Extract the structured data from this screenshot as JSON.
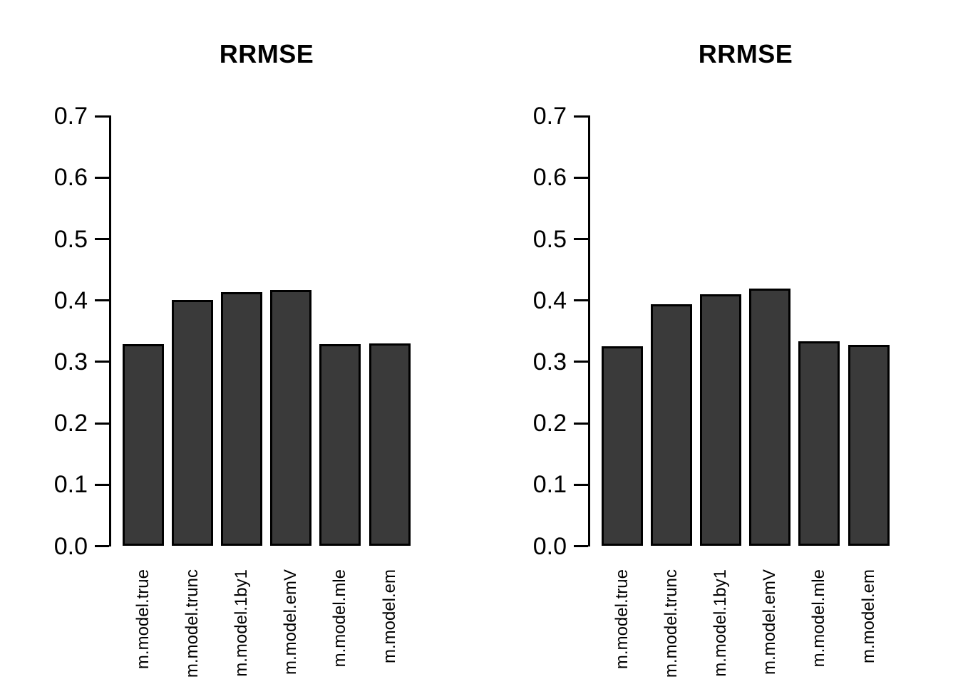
{
  "page": {
    "background_color": "#ffffff",
    "description": "Two side-by-side bar charts"
  },
  "chart_data": [
    {
      "type": "bar",
      "title": "RRMSE",
      "categories": [
        "m.model.true",
        "m.model.trunc",
        "m.model.1by1",
        "m.model.emV",
        "m.model.mle",
        "m.model.em"
      ],
      "values": [
        0.329,
        0.401,
        0.414,
        0.417,
        0.329,
        0.33
      ],
      "xlabel": "",
      "ylabel": "",
      "ylim": [
        0,
        0.7
      ],
      "yticks": [
        "0.0",
        "0.1",
        "0.2",
        "0.3",
        "0.4",
        "0.5",
        "0.6",
        "0.7"
      ],
      "grid": false,
      "legend": "none",
      "bar_color": "#3a3a3a",
      "bar_border_color": "#000000",
      "axis_color": "#000000",
      "xtick_rotation_deg": 90
    },
    {
      "type": "bar",
      "title": "RRMSE",
      "categories": [
        "m.model.true",
        "m.model.trunc",
        "m.model.1by1",
        "m.model.emV",
        "m.model.mle",
        "m.model.em"
      ],
      "values": [
        0.325,
        0.394,
        0.41,
        0.419,
        0.333,
        0.328
      ],
      "xlabel": "",
      "ylabel": "",
      "ylim": [
        0,
        0.7
      ],
      "yticks": [
        "0.0",
        "0.1",
        "0.2",
        "0.3",
        "0.4",
        "0.5",
        "0.6",
        "0.7"
      ],
      "grid": false,
      "legend": "none",
      "bar_color": "#3a3a3a",
      "bar_border_color": "#000000",
      "axis_color": "#000000",
      "xtick_rotation_deg": 90
    }
  ]
}
